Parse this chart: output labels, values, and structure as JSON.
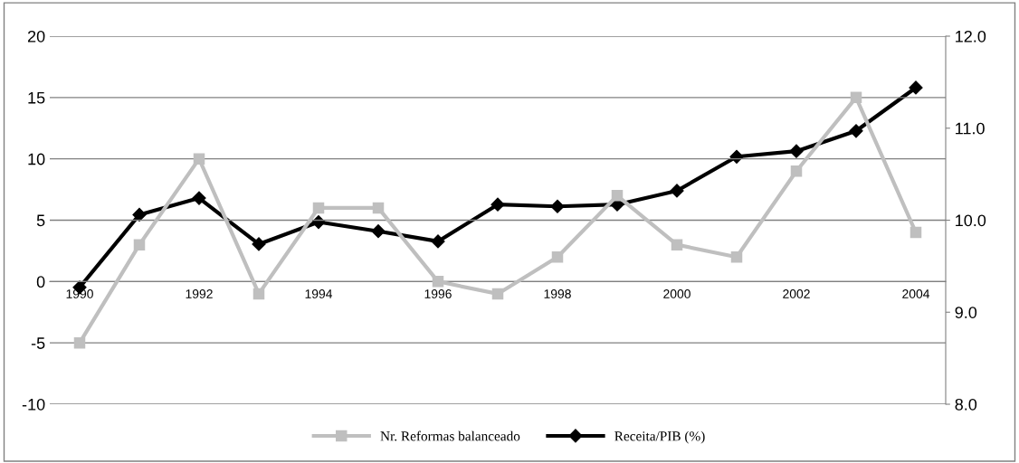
{
  "chart_data": {
    "type": "line",
    "categories": [
      "1990",
      null,
      "1992",
      null,
      "1994",
      null,
      "1996",
      null,
      "1998",
      null,
      "2000",
      null,
      "2002",
      null,
      "2004"
    ],
    "series": [
      {
        "name": "Nr. Reformas balanceado",
        "color": "#bfbfbf",
        "marker": "square",
        "values": [
          -5,
          3,
          10,
          -1,
          6,
          6,
          0,
          -1,
          2,
          7,
          3,
          2,
          9,
          15,
          4
        ]
      },
      {
        "name": "Receita/PIB (%)",
        "color": "#000000",
        "marker": "diamond",
        "axis": "y2",
        "values": [
          9.27,
          10.06,
          10.24,
          9.74,
          9.98,
          9.88,
          9.77,
          10.17,
          10.15,
          10.17,
          10.32,
          10.69,
          10.75,
          10.97,
          11.44
        ]
      }
    ],
    "ylim": [
      -10,
      20
    ],
    "yticks": [
      -10,
      -5,
      0,
      5,
      10,
      15,
      20
    ],
    "y2lim": [
      8,
      12
    ],
    "y2ticks": [
      {
        "value": 8,
        "label": "8.0"
      },
      {
        "value": 9,
        "label": "9.0"
      },
      {
        "value": 10,
        "label": "10.0"
      },
      {
        "value": 11,
        "label": "11.0"
      },
      {
        "value": 12,
        "label": "12.0"
      }
    ],
    "grid": "y",
    "legend": "bottom",
    "line_style": "solid"
  }
}
